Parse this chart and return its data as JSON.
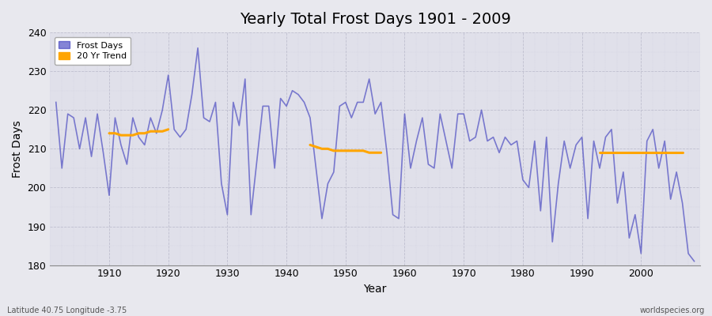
{
  "title": "Yearly Total Frost Days 1901 - 2009",
  "xlabel": "Year",
  "ylabel": "Frost Days",
  "footer_left": "Latitude 40.75 Longitude -3.75",
  "footer_right": "worldspecies.org",
  "line_color": "#3333bb",
  "line_color_alpha": 0.6,
  "trend_color": "#FFA500",
  "bg_color": "#e8e8ee",
  "plot_bg_color": "#e0e0ea",
  "ylim": [
    180,
    240
  ],
  "xlim": [
    1901,
    2009
  ],
  "years": [
    1901,
    1902,
    1903,
    1904,
    1905,
    1906,
    1907,
    1908,
    1909,
    1910,
    1911,
    1912,
    1913,
    1914,
    1915,
    1916,
    1917,
    1918,
    1919,
    1920,
    1921,
    1922,
    1923,
    1924,
    1925,
    1926,
    1927,
    1928,
    1929,
    1930,
    1931,
    1932,
    1933,
    1934,
    1935,
    1936,
    1937,
    1938,
    1939,
    1940,
    1941,
    1942,
    1943,
    1944,
    1945,
    1946,
    1947,
    1948,
    1949,
    1950,
    1951,
    1952,
    1953,
    1954,
    1955,
    1956,
    1957,
    1958,
    1959,
    1960,
    1961,
    1962,
    1963,
    1964,
    1965,
    1966,
    1967,
    1968,
    1969,
    1970,
    1971,
    1972,
    1973,
    1974,
    1975,
    1976,
    1977,
    1978,
    1979,
    1980,
    1981,
    1982,
    1983,
    1984,
    1985,
    1986,
    1987,
    1988,
    1989,
    1990,
    1991,
    1992,
    1993,
    1994,
    1995,
    1996,
    1997,
    1998,
    1999,
    2000,
    2001,
    2002,
    2003,
    2004,
    2005,
    2006,
    2007,
    2008,
    2009
  ],
  "values": [
    222,
    205,
    219,
    218,
    210,
    218,
    208,
    219,
    209,
    198,
    218,
    211,
    206,
    218,
    213,
    211,
    218,
    214,
    220,
    229,
    215,
    213,
    215,
    224,
    236,
    218,
    217,
    222,
    201,
    193,
    222,
    216,
    228,
    193,
    207,
    221,
    221,
    205,
    223,
    221,
    225,
    224,
    222,
    218,
    205,
    192,
    201,
    204,
    221,
    222,
    218,
    222,
    222,
    228,
    219,
    222,
    209,
    193,
    192,
    219,
    205,
    212,
    218,
    206,
    205,
    219,
    212,
    205,
    219,
    219,
    212,
    213,
    220,
    212,
    213,
    209,
    213,
    211,
    212,
    202,
    200,
    212,
    194,
    213,
    186,
    201,
    212,
    205,
    211,
    213,
    192,
    212,
    205,
    213,
    215,
    196,
    204,
    187,
    193,
    183,
    212,
    215,
    205,
    212,
    197,
    204,
    196,
    183,
    181
  ],
  "trend_segments": [
    {
      "years": [
        1910,
        1911,
        1912,
        1913,
        1914,
        1915,
        1916,
        1917,
        1918,
        1919,
        1920
      ],
      "values": [
        214,
        214,
        213.5,
        213.5,
        213.5,
        214,
        214,
        214.5,
        214.5,
        214.5,
        215
      ]
    },
    {
      "years": [
        1944,
        1945,
        1946,
        1947,
        1948,
        1949,
        1950,
        1951,
        1952,
        1953,
        1954,
        1955,
        1956
      ],
      "values": [
        211,
        210.5,
        210,
        210,
        209.5,
        209.5,
        209.5,
        209.5,
        209.5,
        209.5,
        209,
        209,
        209
      ]
    },
    {
      "years": [
        1993,
        1994,
        1995,
        1996,
        1997,
        1998,
        1999,
        2000,
        2001,
        2002,
        2003,
        2004,
        2005,
        2006,
        2007
      ],
      "values": [
        209,
        209,
        209,
        209,
        209,
        209,
        209,
        209,
        209,
        209,
        209,
        209,
        209,
        209,
        209
      ]
    }
  ]
}
